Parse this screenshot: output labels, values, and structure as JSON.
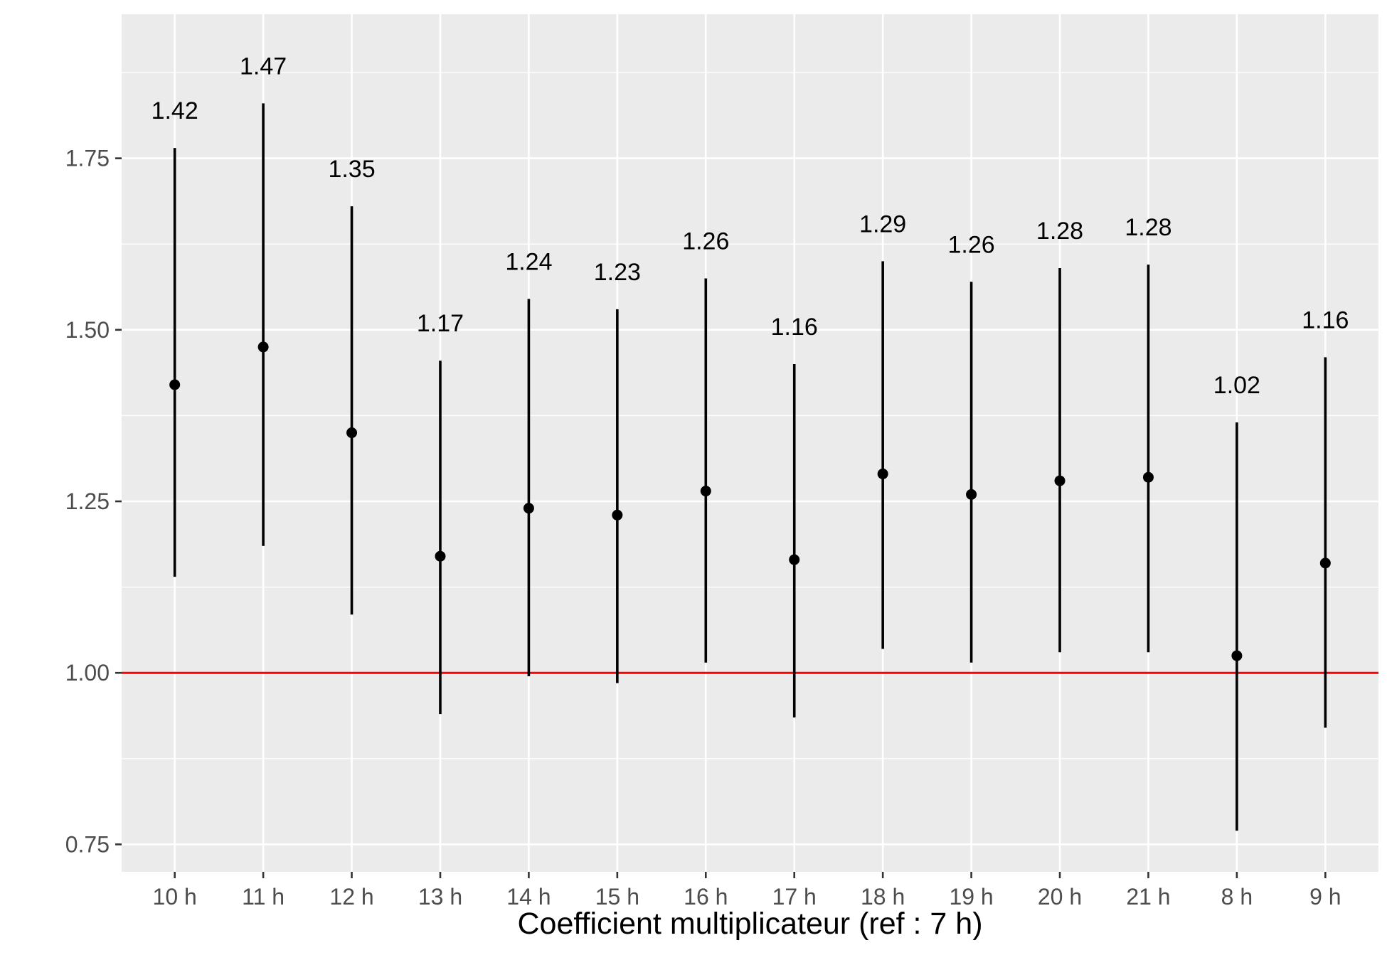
{
  "chart_data": {
    "type": "scatter",
    "title": "",
    "xlabel": "Coefficient multiplicateur (ref : 7 h)",
    "ylabel": "",
    "categories": [
      "10 h",
      "11 h",
      "12 h",
      "13 h",
      "14 h",
      "15 h",
      "16 h",
      "17 h",
      "18 h",
      "19 h",
      "20 h",
      "21 h",
      "8 h",
      "9 h"
    ],
    "series": [
      {
        "values": [
          1.42,
          1.475,
          1.35,
          1.17,
          1.24,
          1.23,
          1.265,
          1.165,
          1.29,
          1.26,
          1.28,
          1.285,
          1.025,
          1.16
        ],
        "lower": [
          1.14,
          1.185,
          1.085,
          0.94,
          0.995,
          0.985,
          1.015,
          0.935,
          1.035,
          1.015,
          1.03,
          1.03,
          0.77,
          0.92
        ],
        "upper": [
          1.765,
          1.83,
          1.68,
          1.455,
          1.545,
          1.53,
          1.575,
          1.45,
          1.6,
          1.57,
          1.59,
          1.595,
          1.365,
          1.46
        ]
      }
    ],
    "labels": [
      "1.42",
      "1.47",
      "1.35",
      "1.17",
      "1.24",
      "1.23",
      "1.26",
      "1.16",
      "1.29",
      "1.26",
      "1.28",
      "1.28",
      "1.02",
      "1.16"
    ],
    "yticks": [
      "0.75",
      "1.00",
      "1.25",
      "1.50",
      "1.75"
    ],
    "ylim": [
      0.71,
      1.96
    ],
    "reference_line": 1.0,
    "colors": {
      "panel": "#ebebeb",
      "grid": "#ffffff",
      "points": "#000000",
      "reference": "#ff0000",
      "tick_text": "#4d4d4d"
    },
    "grid": true,
    "legend": "none"
  }
}
